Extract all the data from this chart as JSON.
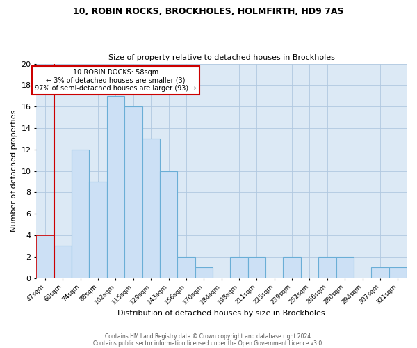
{
  "title1": "10, ROBIN ROCKS, BROCKHOLES, HOLMFIRTH, HD9 7AS",
  "title2": "Size of property relative to detached houses in Brockholes",
  "xlabel": "Distribution of detached houses by size in Brockholes",
  "ylabel": "Number of detached properties",
  "bin_labels": [
    "47sqm",
    "60sqm",
    "74sqm",
    "88sqm",
    "102sqm",
    "115sqm",
    "129sqm",
    "143sqm",
    "156sqm",
    "170sqm",
    "184sqm",
    "198sqm",
    "211sqm",
    "225sqm",
    "239sqm",
    "252sqm",
    "266sqm",
    "280sqm",
    "294sqm",
    "307sqm",
    "321sqm"
  ],
  "bar_values": [
    4,
    3,
    12,
    9,
    17,
    16,
    13,
    10,
    2,
    1,
    0,
    2,
    2,
    0,
    2,
    0,
    2,
    2,
    0,
    1,
    1
  ],
  "bar_color": "#cce0f5",
  "bar_edge_color": "#6aaed6",
  "highlight_bar_edge_color": "#cc0000",
  "red_line_x": 1,
  "annotation_line1": "10 ROBIN ROCKS: 58sqm",
  "annotation_line2": "← 3% of detached houses are smaller (3)",
  "annotation_line3": "97% of semi-detached houses are larger (93) →",
  "annotation_box_edge_color": "#cc0000",
  "ylim": [
    0,
    20
  ],
  "yticks": [
    0,
    2,
    4,
    6,
    8,
    10,
    12,
    14,
    16,
    18,
    20
  ],
  "footer1": "Contains HM Land Registry data © Crown copyright and database right 2024.",
  "footer2": "Contains public sector information licensed under the Open Government Licence v3.0.",
  "bg_color": "#ffffff",
  "plot_bg_color": "#dce9f5",
  "grid_color": "#b0c8e0"
}
